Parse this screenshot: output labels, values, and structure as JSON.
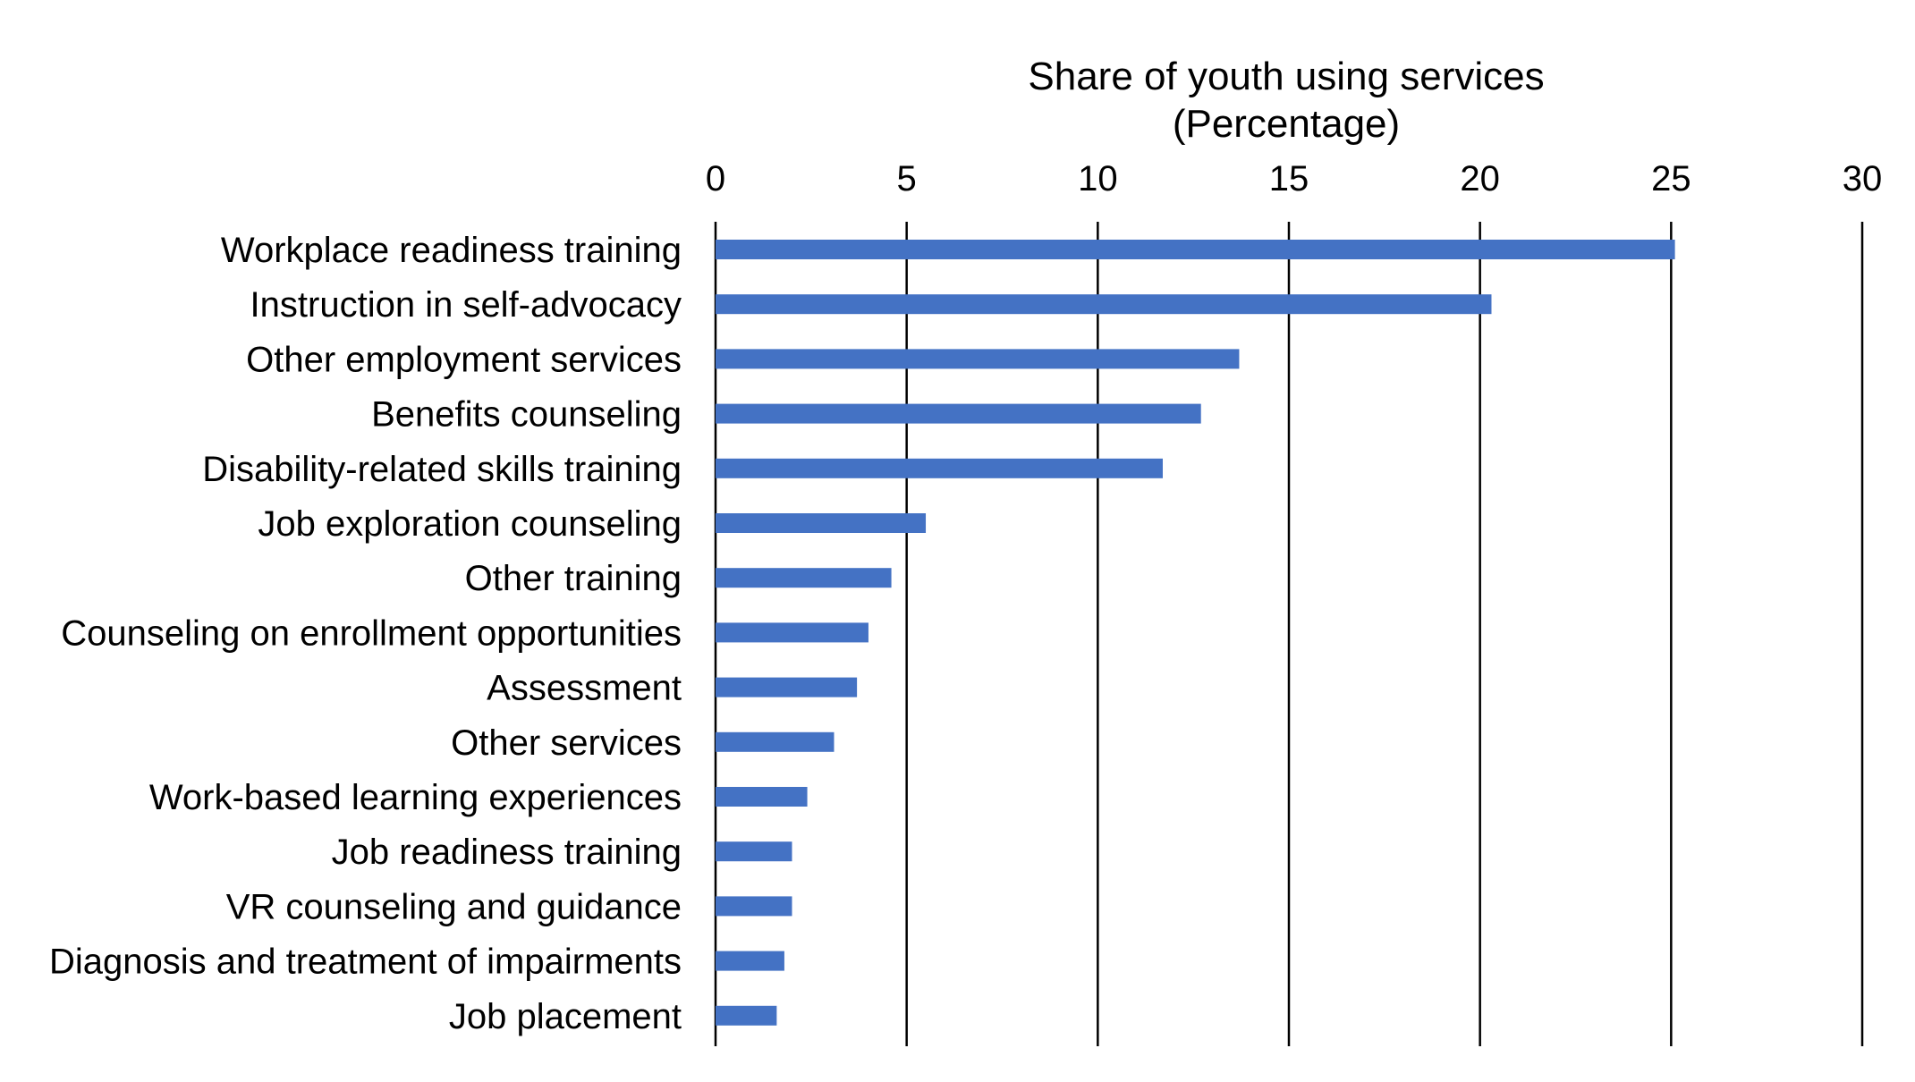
{
  "chart_data": {
    "type": "bar",
    "orientation": "horizontal",
    "title": "",
    "xlabel": "Share of youth using services",
    "xlabel_sub": "(Percentage)",
    "ylabel": "",
    "xlim": [
      0,
      30
    ],
    "xticks": [
      "0",
      "5",
      "10",
      "15",
      "20",
      "25",
      "30"
    ],
    "grid": true,
    "bar_color": "#4472C4",
    "categories": [
      "Workplace readiness training",
      "Instruction in self-advocacy",
      "Other employment services",
      "Benefits counseling",
      "Disability-related skills training",
      "Job exploration counseling",
      "Other training",
      "Counseling on enrollment opportunities",
      "Assessment",
      "Other services",
      "Work-based learning experiences",
      "Job readiness training",
      "VR counseling and guidance",
      "Diagnosis and treatment of impairments",
      "Job placement"
    ],
    "values": [
      25.1,
      20.3,
      13.7,
      12.7,
      11.7,
      5.5,
      4.6,
      4.0,
      3.7,
      3.1,
      2.4,
      2.0,
      2.0,
      1.8,
      1.6
    ]
  }
}
